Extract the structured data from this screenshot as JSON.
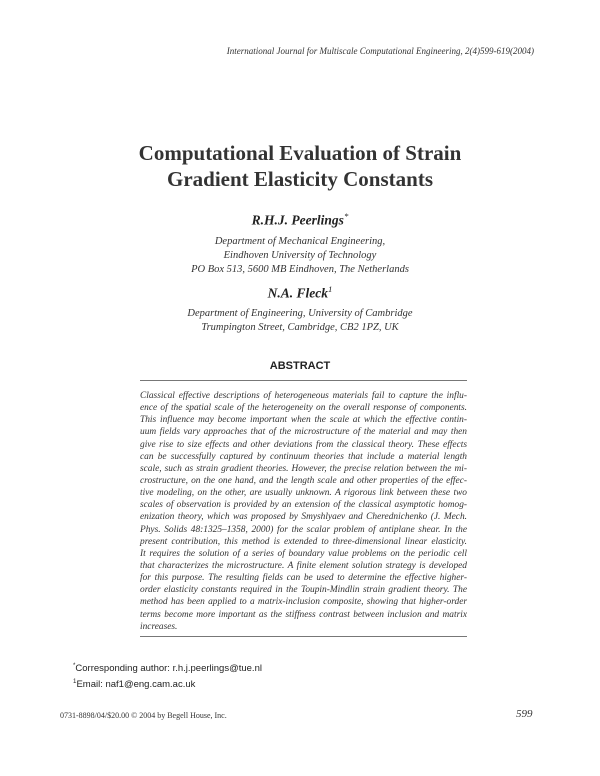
{
  "journal_header": "International Journal for Multiscale Computational Engineering, 2(4)599-619(2004)",
  "title_lines": [
    "Computational Evaluation of Strain",
    "Gradient Elasticity Constants"
  ],
  "authors": [
    {
      "name": "R.H.J. Peerlings",
      "mark": "*",
      "affiliation": [
        "Department of Mechanical Engineering,",
        "Eindhoven University of Technology",
        "PO Box 513, 5600 MB Eindhoven, The Netherlands"
      ]
    },
    {
      "name": "N.A. Fleck",
      "mark": "1",
      "affiliation": [
        "Department of Engineering, University of Cambridge",
        "Trumpington Street, Cambridge, CB2 1PZ, UK"
      ]
    }
  ],
  "abstract_heading": "ABSTRACT",
  "abstract_lines": [
    "Classical effective descriptions of heterogeneous materials fail to capture the influ-",
    "ence of the spatial scale of the heterogeneity on the overall response of components.",
    "This influence may become important when the scale at which the effective contin-",
    "uum fields vary approaches that of the microstructure of the material and may then",
    "give rise to size effects and other deviations from the classical theory. These effects",
    "can be successfully captured by continuum theories that include a material length",
    "scale, such as strain gradient theories. However, the precise relation between the mi-",
    "crostructure, on the one hand, and the length scale and other properties of the effec-",
    "tive modeling, on the other, are usually unknown. A rigorous link between these two",
    "scales of observation is provided by an extension of the classical asymptotic homog-",
    "enization theory, which was proposed by Smyshlyaev and Cherednichenko (J. Mech.",
    "Phys. Solids 48:1325–1358, 2000) for the scalar problem of antiplane shear. In the",
    "present contribution, this method is extended to three-dimensional linear elasticity.",
    "It requires the solution of a series of boundary value problems on the periodic cell",
    "that characterizes the microstructure. A finite element solution strategy is developed",
    "for this purpose. The resulting fields can be used to determine the effective higher-",
    "order elasticity constants required in the Toupin-Mindlin strain gradient theory. The",
    "method has been applied to a matrix-inclusion composite, showing that higher-order",
    "terms become more important as the stiffness contrast between inclusion and matrix",
    "increases."
  ],
  "footnotes": [
    {
      "mark": "*",
      "text": "Corresponding author: r.h.j.peerlings@tue.nl"
    },
    {
      "mark": "1",
      "text": "Email: naf1@eng.cam.ac.uk"
    }
  ],
  "footer": {
    "copyright": "0731-8898/04/$20.00 © 2004 by Begell House, Inc.",
    "page_number": "599"
  }
}
